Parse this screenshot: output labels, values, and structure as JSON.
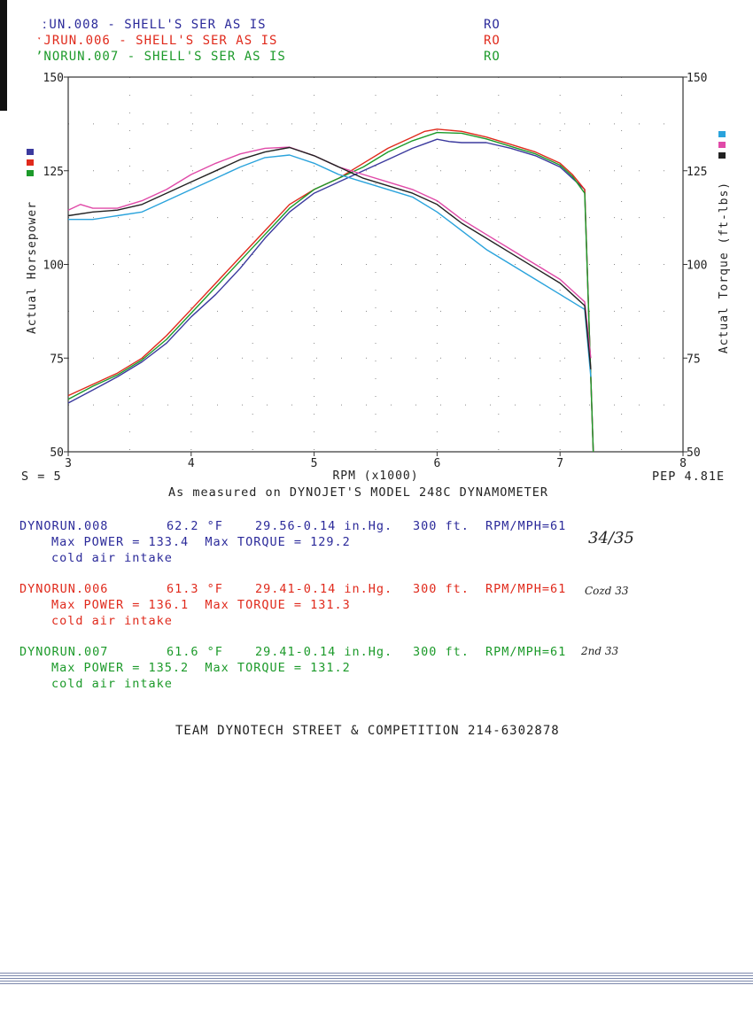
{
  "header": {
    "lines": [
      {
        "text": "ːUN.008 - SHELL'S SER AS IS",
        "ro": "RO",
        "color": "#2b2a9a"
      },
      {
        "text": "ˑJRUN.006 - SHELL'S SER AS IS",
        "ro": "RO",
        "color": "#e02a1c"
      },
      {
        "text": "ʼNORUN.007 - SHELL'S SER AS IS",
        "ro": "RO",
        "color": "#1c9a2a"
      }
    ]
  },
  "footer": {
    "smoothing": "S = 5",
    "correction": "PEP 4.81E",
    "measured": "As measured on DYNOJET'S MODEL 248C DYNAMOMETER",
    "team": "TEAM DYNOTECH STREET & COMPETITION 214-6302878"
  },
  "runs": [
    {
      "name": "DYNORUN.008",
      "temp": "62.2 °F",
      "baro": "29.56-0.14 in.Hg.",
      "alt": "300 ft.",
      "ratio": "RPM/MPH=61",
      "max": "Max POWER = 133.4  Max TORQUE = 129.2",
      "note": "cold air intake",
      "color": "#2b2a9a",
      "hand": "34/35"
    },
    {
      "name": "DYNORUN.006",
      "temp": "61.3 °F",
      "baro": "29.41-0.14 in.Hg.",
      "alt": "300 ft.",
      "ratio": "RPM/MPH=61",
      "max": "Max POWER = 136.1  Max TORQUE = 131.3",
      "note": "cold air intake",
      "color": "#e02a1c",
      "hand": "Cozd 33"
    },
    {
      "name": "DYNORUN.007",
      "temp": "61.6 °F",
      "baro": "29.41-0.14 in.Hg.",
      "alt": "300 ft.",
      "ratio": "RPM/MPH=61",
      "max": "Max POWER = 135.2  Max TORQUE = 131.2",
      "note": "cold air intake",
      "color": "#1c9a2a",
      "hand": "2nd 33"
    }
  ],
  "chart_data": {
    "type": "line",
    "xlabel": "RPM (x1000)",
    "ylabel_left": "Actual Horsepower",
    "ylabel_right": "Actual Torque (ft-lbs)",
    "xlim": [
      3,
      8
    ],
    "ylim": [
      50,
      150
    ],
    "xticks": [
      3,
      4,
      5,
      6,
      7,
      8
    ],
    "yticks": [
      50,
      75,
      100,
      125,
      150
    ],
    "grid": "dotted",
    "legend": "left and right color swatches",
    "series": [
      {
        "color": "#3b3a9e",
        "kind": "power",
        "x": [
          3.0,
          3.2,
          3.4,
          3.6,
          3.8,
          4.0,
          4.2,
          4.4,
          4.6,
          4.8,
          5.0,
          5.2,
          5.4,
          5.6,
          5.8,
          5.9,
          6.0,
          6.1,
          6.2,
          6.4,
          6.6,
          6.8,
          7.0,
          7.1,
          7.2,
          7.24,
          7.27
        ],
        "y": [
          63,
          66.5,
          70,
          74,
          79,
          86,
          92,
          99,
          107,
          114,
          119,
          122,
          125,
          128,
          131,
          132.2,
          133.4,
          132.8,
          132.5,
          132.5,
          131,
          129,
          126,
          123,
          120,
          80,
          50
        ]
      },
      {
        "color": "#e02a1c",
        "kind": "power",
        "x": [
          3.0,
          3.2,
          3.4,
          3.6,
          3.8,
          4.0,
          4.2,
          4.4,
          4.6,
          4.8,
          5.0,
          5.2,
          5.4,
          5.6,
          5.8,
          5.9,
          6.0,
          6.2,
          6.4,
          6.6,
          6.8,
          7.0,
          7.1,
          7.2,
          7.24,
          7.27
        ],
        "y": [
          65,
          68,
          71,
          75,
          81,
          88,
          95,
          102,
          109,
          116,
          120,
          123,
          127,
          131,
          134,
          135.5,
          136.1,
          135.5,
          134,
          132,
          130,
          127,
          124,
          120,
          80,
          50
        ]
      },
      {
        "color": "#1c9a2a",
        "kind": "power",
        "x": [
          3.0,
          3.2,
          3.4,
          3.6,
          3.8,
          4.0,
          4.2,
          4.4,
          4.6,
          4.8,
          5.0,
          5.2,
          5.4,
          5.6,
          5.8,
          6.0,
          6.2,
          6.4,
          6.6,
          6.8,
          7.0,
          7.1,
          7.2,
          7.24,
          7.27
        ],
        "y": [
          64,
          67.5,
          70.5,
          74.5,
          80,
          87,
          94,
          101,
          108,
          115,
          120,
          123,
          126,
          130,
          133,
          135.2,
          135,
          133.5,
          131.5,
          129.5,
          126.5,
          123.5,
          119,
          80,
          50
        ]
      },
      {
        "color": "#2aa3dc",
        "kind": "torque",
        "x": [
          3.0,
          3.2,
          3.4,
          3.6,
          3.8,
          4.0,
          4.2,
          4.4,
          4.6,
          4.8,
          5.0,
          5.2,
          5.4,
          5.6,
          5.8,
          6.0,
          6.2,
          6.4,
          6.6,
          6.8,
          7.0,
          7.1,
          7.2,
          7.25
        ],
        "y": [
          112,
          112,
          113,
          114,
          117,
          120,
          123,
          126,
          128.5,
          129.2,
          127,
          124,
          122,
          120,
          118,
          114,
          109,
          104,
          100,
          96,
          92,
          90,
          88,
          70
        ]
      },
      {
        "color": "#e04aa8",
        "kind": "torque",
        "x": [
          3.0,
          3.1,
          3.2,
          3.4,
          3.6,
          3.8,
          4.0,
          4.2,
          4.4,
          4.6,
          4.8,
          5.0,
          5.2,
          5.4,
          5.6,
          5.8,
          6.0,
          6.2,
          6.4,
          6.6,
          6.8,
          7.0,
          7.1,
          7.2,
          7.25
        ],
        "y": [
          114.5,
          116,
          115,
          115,
          117,
          120,
          124,
          127,
          129.5,
          131,
          131.3,
          129,
          126,
          124,
          122,
          120,
          117,
          112,
          108,
          104,
          100,
          96,
          93,
          90,
          75
        ]
      },
      {
        "color": "#222222",
        "kind": "torque",
        "x": [
          3.0,
          3.2,
          3.4,
          3.6,
          3.8,
          4.0,
          4.2,
          4.4,
          4.6,
          4.8,
          5.0,
          5.2,
          5.4,
          5.6,
          5.8,
          6.0,
          6.2,
          6.4,
          6.6,
          6.8,
          7.0,
          7.1,
          7.2,
          7.25
        ],
        "y": [
          113,
          114,
          114.5,
          116,
          119,
          122,
          125,
          128,
          130,
          131.2,
          129,
          126,
          123,
          121,
          119,
          116,
          111,
          107,
          103,
          99,
          95,
          92,
          89,
          72
        ]
      }
    ]
  }
}
